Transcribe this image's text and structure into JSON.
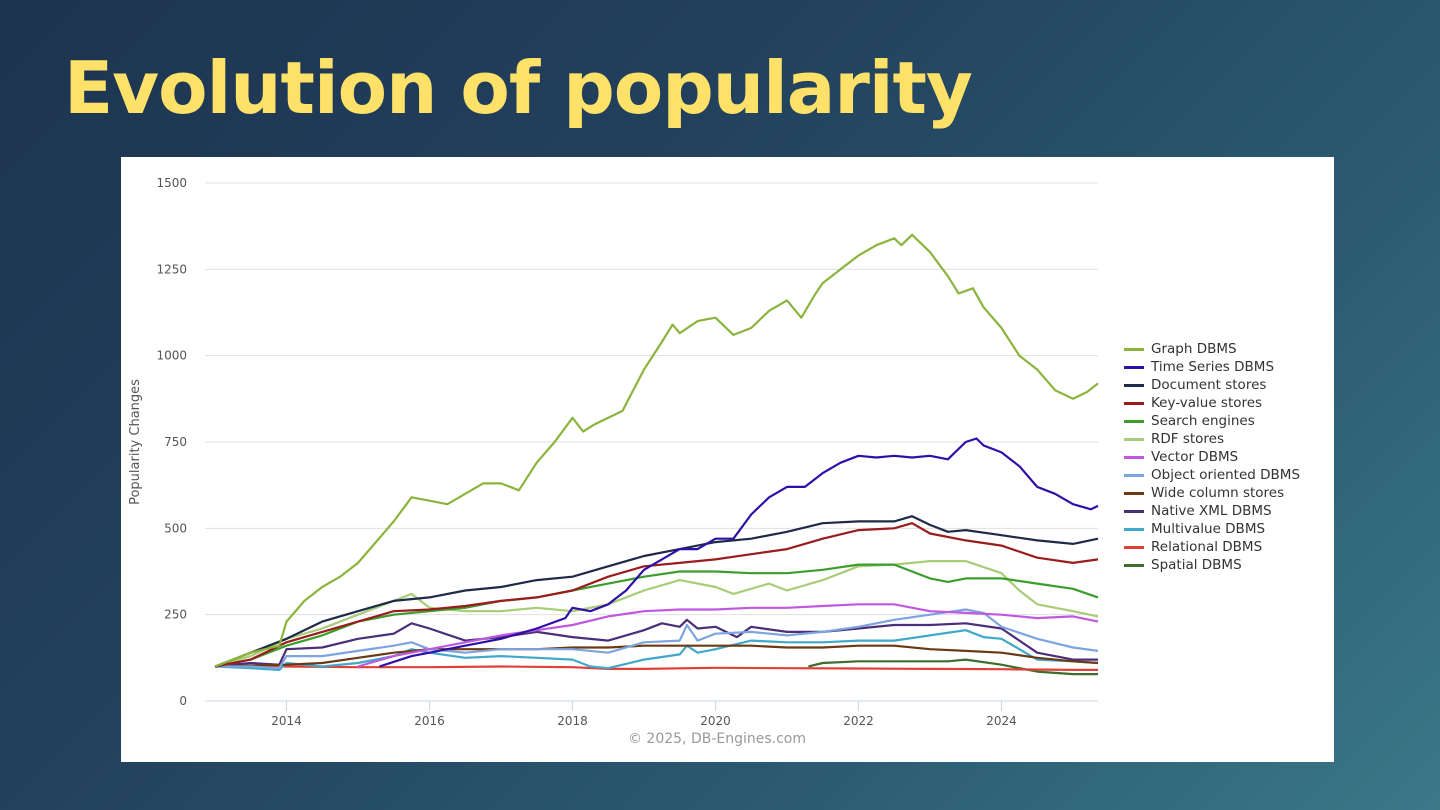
{
  "slide": {
    "title": "Evolution of popularity"
  },
  "chart_data": {
    "type": "line",
    "title": "",
    "xlabel": "",
    "ylabel": "Popularity Changes",
    "credit": "© 2025, DB-Engines.com",
    "xlim": [
      2013.0,
      2025.35
    ],
    "ylim": [
      0,
      1500
    ],
    "yticks": [
      0,
      250,
      500,
      750,
      1000,
      1250,
      1500
    ],
    "xticks": [
      2014,
      2016,
      2018,
      2020,
      2022,
      2024
    ],
    "grid": true,
    "legend_position": "right",
    "series": [
      {
        "name": "Graph DBMS",
        "color": "#8cb43c",
        "x": [
          2013.0,
          2013.5,
          2013.9,
          2014.0,
          2014.25,
          2014.5,
          2014.75,
          2015.0,
          2015.25,
          2015.5,
          2015.75,
          2016.0,
          2016.25,
          2016.5,
          2016.75,
          2017.0,
          2017.25,
          2017.5,
          2017.75,
          2018.0,
          2018.15,
          2018.3,
          2018.5,
          2018.7,
          2019.0,
          2019.25,
          2019.4,
          2019.5,
          2019.75,
          2020.0,
          2020.25,
          2020.5,
          2020.75,
          2021.0,
          2021.2,
          2021.4,
          2021.5,
          2021.75,
          2022.0,
          2022.25,
          2022.5,
          2022.6,
          2022.75,
          2023.0,
          2023.25,
          2023.4,
          2023.6,
          2023.75,
          2024.0,
          2024.25,
          2024.5,
          2024.75,
          2025.0,
          2025.2,
          2025.35
        ],
        "values": [
          100,
          140,
          160,
          230,
          290,
          330,
          360,
          400,
          460,
          520,
          590,
          580,
          570,
          600,
          630,
          630,
          610,
          690,
          750,
          820,
          780,
          800,
          820,
          840,
          960,
          1040,
          1090,
          1065,
          1100,
          1110,
          1060,
          1080,
          1130,
          1160,
          1110,
          1180,
          1210,
          1250,
          1290,
          1320,
          1340,
          1320,
          1350,
          1300,
          1230,
          1180,
          1195,
          1140,
          1080,
          1000,
          960,
          900,
          875,
          895,
          920
        ]
      },
      {
        "name": "Time Series DBMS",
        "color": "#2e0fa8",
        "x": [
          2015.3,
          2015.75,
          2016.0,
          2016.5,
          2017.0,
          2017.5,
          2017.9,
          2018.0,
          2018.25,
          2018.5,
          2018.75,
          2019.0,
          2019.25,
          2019.5,
          2019.75,
          2020.0,
          2020.25,
          2020.5,
          2020.75,
          2021.0,
          2021.25,
          2021.5,
          2021.75,
          2022.0,
          2022.25,
          2022.5,
          2022.75,
          2023.0,
          2023.25,
          2023.5,
          2023.65,
          2023.75,
          2024.0,
          2024.25,
          2024.5,
          2024.75,
          2025.0,
          2025.25,
          2025.35
        ],
        "values": [
          100,
          130,
          140,
          160,
          180,
          210,
          240,
          270,
          260,
          280,
          320,
          380,
          410,
          440,
          440,
          470,
          470,
          540,
          590,
          620,
          620,
          660,
          690,
          710,
          705,
          710,
          705,
          710,
          700,
          750,
          760,
          740,
          720,
          680,
          620,
          600,
          570,
          555,
          565
        ]
      },
      {
        "name": "Document stores",
        "color": "#1e2b48",
        "x": [
          2013.0,
          2013.5,
          2014.0,
          2014.5,
          2015.0,
          2015.5,
          2016.0,
          2016.5,
          2017.0,
          2017.5,
          2018.0,
          2018.5,
          2019.0,
          2019.5,
          2020.0,
          2020.5,
          2021.0,
          2021.5,
          2022.0,
          2022.5,
          2022.75,
          2023.0,
          2023.25,
          2023.5,
          2024.0,
          2024.5,
          2025.0,
          2025.35
        ],
        "values": [
          100,
          140,
          180,
          230,
          260,
          290,
          300,
          320,
          330,
          350,
          360,
          390,
          420,
          440,
          460,
          470,
          490,
          515,
          520,
          520,
          535,
          510,
          490,
          495,
          480,
          465,
          455,
          470
        ]
      },
      {
        "name": "Key-value stores",
        "color": "#9b1c1c",
        "x": [
          2013.0,
          2013.5,
          2014.0,
          2014.5,
          2015.0,
          2015.5,
          2016.0,
          2016.5,
          2017.0,
          2017.5,
          2018.0,
          2018.5,
          2019.0,
          2019.5,
          2020.0,
          2020.5,
          2021.0,
          2021.5,
          2022.0,
          2022.5,
          2022.75,
          2023.0,
          2023.5,
          2024.0,
          2024.5,
          2025.0,
          2025.35
        ],
        "values": [
          100,
          120,
          170,
          200,
          230,
          260,
          265,
          275,
          290,
          300,
          320,
          360,
          390,
          400,
          410,
          425,
          440,
          470,
          495,
          500,
          515,
          485,
          465,
          450,
          415,
          400,
          410
        ]
      },
      {
        "name": "Search engines",
        "color": "#3c9c2c",
        "x": [
          2013.0,
          2013.5,
          2014.0,
          2014.5,
          2015.0,
          2015.5,
          2016.0,
          2016.5,
          2017.0,
          2017.5,
          2018.0,
          2018.5,
          2019.0,
          2019.5,
          2020.0,
          2020.5,
          2021.0,
          2021.5,
          2022.0,
          2022.5,
          2023.0,
          2023.25,
          2023.5,
          2024.0,
          2024.5,
          2025.0,
          2025.35
        ],
        "values": [
          100,
          120,
          160,
          190,
          230,
          250,
          260,
          270,
          290,
          300,
          320,
          340,
          360,
          375,
          375,
          370,
          370,
          380,
          395,
          395,
          355,
          345,
          355,
          355,
          340,
          325,
          300
        ]
      },
      {
        "name": "RDF stores",
        "color": "#a8cc78",
        "x": [
          2013.0,
          2013.5,
          2014.0,
          2014.5,
          2015.0,
          2015.5,
          2015.75,
          2016.0,
          2016.5,
          2017.0,
          2017.5,
          2018.0,
          2018.5,
          2019.0,
          2019.5,
          2020.0,
          2020.25,
          2020.75,
          2021.0,
          2021.5,
          2022.0,
          2022.5,
          2023.0,
          2023.5,
          2024.0,
          2024.25,
          2024.5,
          2025.0,
          2025.35
        ],
        "values": [
          100,
          130,
          180,
          210,
          250,
          290,
          310,
          270,
          260,
          260,
          270,
          260,
          280,
          320,
          350,
          330,
          310,
          340,
          320,
          350,
          390,
          395,
          405,
          405,
          370,
          320,
          280,
          260,
          245
        ]
      },
      {
        "name": "Vector DBMS",
        "color": "#c058e0",
        "x": [
          2015.0,
          2015.5,
          2016.0,
          2016.5,
          2017.0,
          2017.5,
          2018.0,
          2018.5,
          2019.0,
          2019.5,
          2020.0,
          2020.5,
          2021.0,
          2021.5,
          2022.0,
          2022.5,
          2023.0,
          2023.5,
          2024.0,
          2024.5,
          2025.0,
          2025.35
        ],
        "values": [
          100,
          130,
          150,
          170,
          190,
          205,
          220,
          245,
          260,
          265,
          265,
          270,
          270,
          275,
          280,
          280,
          260,
          255,
          250,
          240,
          245,
          230
        ]
      },
      {
        "name": "Object oriented DBMS",
        "color": "#7ea4e0",
        "x": [
          2013.0,
          2013.5,
          2013.9,
          2014.0,
          2014.5,
          2015.0,
          2015.5,
          2015.75,
          2016.0,
          2016.5,
          2017.0,
          2017.5,
          2018.0,
          2018.5,
          2019.0,
          2019.5,
          2019.6,
          2019.75,
          2020.0,
          2020.5,
          2021.0,
          2021.5,
          2022.0,
          2022.5,
          2023.0,
          2023.5,
          2023.75,
          2024.0,
          2024.5,
          2025.0,
          2025.35
        ],
        "values": [
          100,
          100,
          95,
          130,
          130,
          145,
          160,
          170,
          150,
          140,
          150,
          150,
          150,
          140,
          170,
          175,
          220,
          175,
          195,
          200,
          190,
          200,
          215,
          235,
          250,
          265,
          255,
          215,
          180,
          155,
          145
        ]
      },
      {
        "name": "Wide column stores",
        "color": "#6b3a14",
        "x": [
          2013.0,
          2014.0,
          2014.5,
          2015.0,
          2015.5,
          2016.0,
          2016.5,
          2017.0,
          2017.5,
          2018.0,
          2018.5,
          2019.0,
          2019.5,
          2020.0,
          2020.5,
          2021.0,
          2021.5,
          2022.0,
          2022.5,
          2023.0,
          2023.5,
          2024.0,
          2024.5,
          2025.0,
          2025.35
        ],
        "values": [
          100,
          105,
          110,
          125,
          140,
          150,
          150,
          150,
          150,
          155,
          155,
          160,
          160,
          160,
          160,
          155,
          155,
          160,
          160,
          150,
          145,
          140,
          125,
          115,
          110
        ]
      },
      {
        "name": "Native XML DBMS",
        "color": "#4a2e78",
        "x": [
          2013.0,
          2013.5,
          2013.9,
          2014.0,
          2014.5,
          2015.0,
          2015.5,
          2015.75,
          2016.0,
          2016.5,
          2017.0,
          2017.5,
          2018.0,
          2018.5,
          2019.0,
          2019.25,
          2019.5,
          2019.6,
          2019.75,
          2020.0,
          2020.3,
          2020.5,
          2021.0,
          2021.5,
          2022.0,
          2022.5,
          2023.0,
          2023.5,
          2024.0,
          2024.5,
          2025.0,
          2025.35
        ],
        "values": [
          100,
          110,
          105,
          150,
          155,
          180,
          195,
          225,
          210,
          175,
          185,
          200,
          185,
          175,
          205,
          225,
          215,
          235,
          210,
          215,
          185,
          215,
          200,
          200,
          210,
          220,
          220,
          225,
          210,
          140,
          120,
          120
        ]
      },
      {
        "name": "Multivalue DBMS",
        "color": "#40a8c8",
        "x": [
          2013.0,
          2013.5,
          2013.9,
          2014.0,
          2014.5,
          2015.0,
          2015.5,
          2015.75,
          2016.0,
          2016.5,
          2017.0,
          2017.5,
          2018.0,
          2018.25,
          2018.5,
          2019.0,
          2019.5,
          2019.6,
          2019.75,
          2020.0,
          2020.5,
          2021.0,
          2021.5,
          2022.0,
          2022.5,
          2023.0,
          2023.5,
          2023.75,
          2024.0,
          2024.5,
          2025.0,
          2025.35
        ],
        "values": [
          100,
          95,
          90,
          110,
          100,
          110,
          130,
          150,
          140,
          125,
          130,
          125,
          120,
          100,
          95,
          120,
          135,
          160,
          140,
          150,
          175,
          170,
          170,
          175,
          175,
          190,
          205,
          185,
          180,
          120,
          115,
          110
        ]
      },
      {
        "name": "Relational DBMS",
        "color": "#e04038",
        "x": [
          2013.0,
          2014.0,
          2015.0,
          2016.0,
          2017.0,
          2018.0,
          2018.5,
          2019.0,
          2020.0,
          2021.0,
          2022.0,
          2023.0,
          2024.0,
          2025.0,
          2025.35
        ],
        "values": [
          100,
          100,
          98,
          98,
          100,
          98,
          93,
          93,
          96,
          95,
          94,
          93,
          92,
          90,
          90
        ]
      },
      {
        "name": "Spatial DBMS",
        "color": "#3c6e2c",
        "x": [
          2021.3,
          2021.5,
          2022.0,
          2022.5,
          2023.0,
          2023.25,
          2023.5,
          2024.0,
          2024.5,
          2025.0,
          2025.35
        ],
        "values": [
          100,
          110,
          115,
          115,
          115,
          115,
          120,
          105,
          85,
          78,
          78
        ]
      }
    ]
  }
}
